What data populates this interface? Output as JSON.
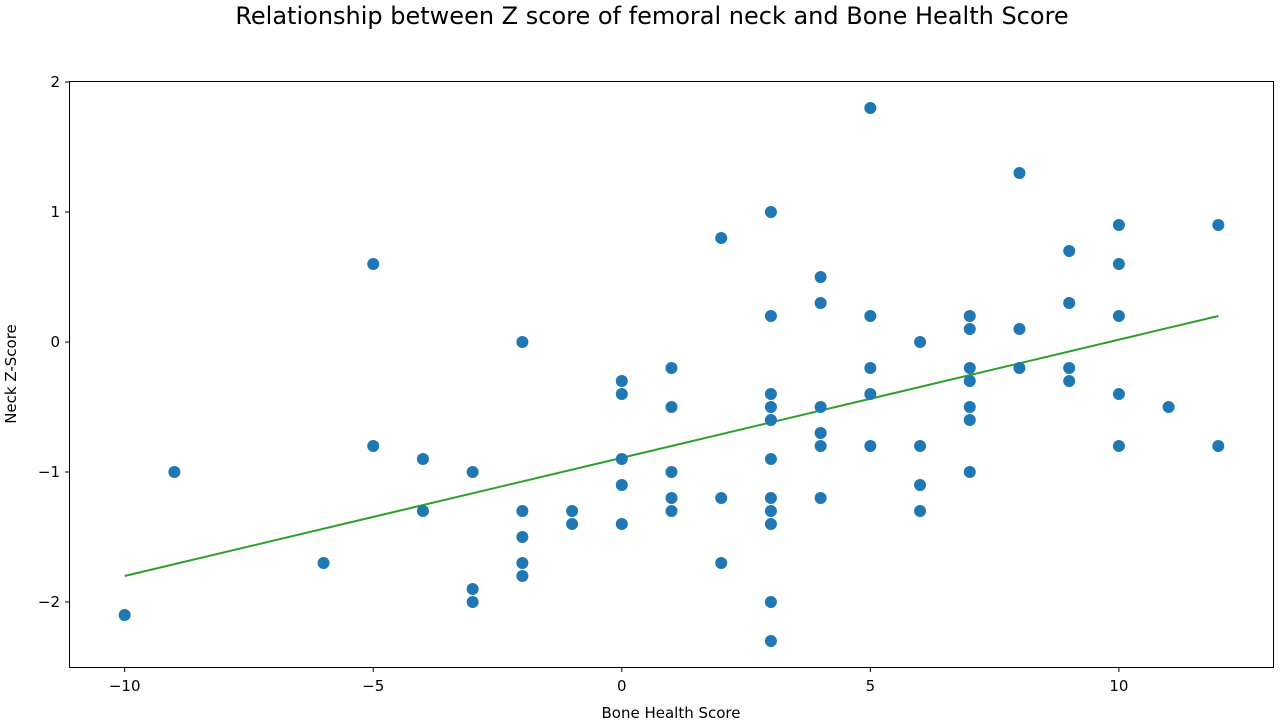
{
  "chart_data": {
    "type": "scatter",
    "title": "Relationship between Z score of femoral neck and Bone Health Score",
    "xlabel": "Bone Health Score",
    "ylabel": "Neck Z-Score",
    "xlim": [
      -11.1,
      13.1
    ],
    "ylim": [
      -2.5,
      2.0
    ],
    "xticks": [
      -10,
      -5,
      0,
      5,
      10
    ],
    "yticks": [
      -2,
      -1,
      0,
      1,
      2
    ],
    "xtick_labels": [
      "−10",
      "−5",
      "0",
      "5",
      "10"
    ],
    "ytick_labels": [
      "−2",
      "−1",
      "0",
      "1",
      "2"
    ],
    "grid": false,
    "point_color": "#1f77b4",
    "line_color": "#2ca02c",
    "points": [
      [
        -10,
        -2.1
      ],
      [
        -9,
        -1.0
      ],
      [
        -6,
        -1.7
      ],
      [
        -5,
        0.6
      ],
      [
        -5,
        -0.8
      ],
      [
        -4,
        -0.9
      ],
      [
        -4,
        -1.3
      ],
      [
        -3,
        -1.0
      ],
      [
        -3,
        -1.9
      ],
      [
        -3,
        -2.0
      ],
      [
        -2,
        0.0
      ],
      [
        -2,
        -1.3
      ],
      [
        -2,
        -1.5
      ],
      [
        -2,
        -1.7
      ],
      [
        -2,
        -1.8
      ],
      [
        -1,
        -1.3
      ],
      [
        -1,
        -1.4
      ],
      [
        0,
        -0.3
      ],
      [
        0,
        -0.4
      ],
      [
        0,
        -0.9
      ],
      [
        0,
        -1.1
      ],
      [
        0,
        -1.4
      ],
      [
        1,
        -0.2
      ],
      [
        1,
        -0.5
      ],
      [
        1,
        -1.0
      ],
      [
        1,
        -1.2
      ],
      [
        1,
        -1.3
      ],
      [
        2,
        0.8
      ],
      [
        2,
        -1.2
      ],
      [
        2,
        -1.7
      ],
      [
        3,
        1.0
      ],
      [
        3,
        0.2
      ],
      [
        3,
        -0.4
      ],
      [
        3,
        -0.5
      ],
      [
        3,
        -0.6
      ],
      [
        3,
        -0.9
      ],
      [
        3,
        -1.2
      ],
      [
        3,
        -1.3
      ],
      [
        3,
        -1.4
      ],
      [
        3,
        -2.0
      ],
      [
        3,
        -2.3
      ],
      [
        4,
        0.5
      ],
      [
        4,
        0.3
      ],
      [
        4,
        -0.5
      ],
      [
        4,
        -0.7
      ],
      [
        4,
        -0.8
      ],
      [
        4,
        -1.2
      ],
      [
        5,
        1.8
      ],
      [
        5,
        0.2
      ],
      [
        5,
        -0.2
      ],
      [
        5,
        -0.4
      ],
      [
        5,
        -0.8
      ],
      [
        6,
        0.0
      ],
      [
        6,
        -0.8
      ],
      [
        6,
        -1.1
      ],
      [
        6,
        -1.3
      ],
      [
        7,
        0.2
      ],
      [
        7,
        0.1
      ],
      [
        7,
        -0.2
      ],
      [
        7,
        -0.3
      ],
      [
        7,
        -0.5
      ],
      [
        7,
        -0.6
      ],
      [
        7,
        -1.0
      ],
      [
        8,
        1.3
      ],
      [
        8,
        0.1
      ],
      [
        8,
        -0.2
      ],
      [
        9,
        0.7
      ],
      [
        9,
        0.3
      ],
      [
        9,
        -0.2
      ],
      [
        9,
        -0.3
      ],
      [
        10,
        0.9
      ],
      [
        10,
        0.6
      ],
      [
        10,
        0.2
      ],
      [
        10,
        -0.4
      ],
      [
        10,
        -0.8
      ],
      [
        11,
        -0.5
      ],
      [
        12,
        0.9
      ],
      [
        12,
        -0.8
      ]
    ],
    "fit_line": [
      [
        -10,
        -1.8
      ],
      [
        12,
        0.2
      ]
    ]
  }
}
